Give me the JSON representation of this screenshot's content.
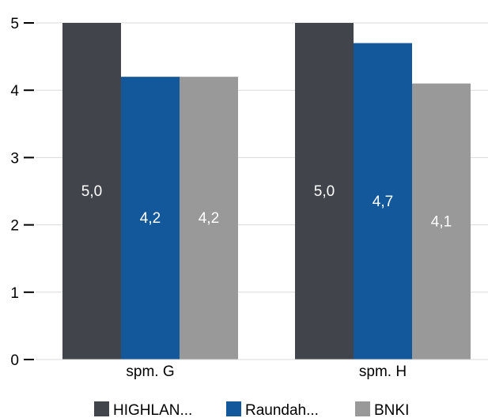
{
  "chart_data": {
    "type": "bar",
    "categories": [
      "spm. G",
      "spm. H"
    ],
    "series": [
      {
        "name": "HIGHLAN...",
        "values": [
          5.0,
          5.0
        ],
        "labels": [
          "5,0",
          "5,0"
        ],
        "color": "#41454b"
      },
      {
        "name": "Raundah...",
        "values": [
          4.2,
          4.7
        ],
        "labels": [
          "4,2",
          "4,7"
        ],
        "color": "#14589c"
      },
      {
        "name": "BNKI",
        "values": [
          4.2,
          4.1
        ],
        "labels": [
          "4,2",
          "4,1"
        ],
        "color": "#999999"
      }
    ],
    "yticks": [
      0,
      1,
      2,
      3,
      4,
      5
    ],
    "ylim": [
      0,
      5
    ],
    "grid": true,
    "legend": "bottom-center",
    "title": "",
    "xlabel": "",
    "ylabel": ""
  }
}
